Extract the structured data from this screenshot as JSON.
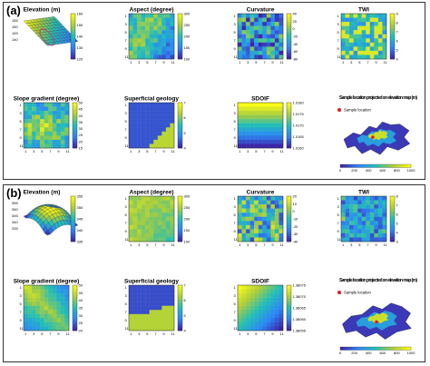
{
  "panels": [
    {
      "label": "(a)",
      "subplots": [
        {
          "title": "Elevation (m)",
          "type": "surface",
          "cb": [
            "160",
            "150",
            "140",
            "130",
            "120"
          ],
          "ticks": [
            "155",
            "150",
            "145",
            "140"
          ]
        },
        {
          "title": "Aspect (degree)",
          "type": "heatmap",
          "cb": [
            "300",
            "250",
            "200",
            "150",
            "100"
          ],
          "ticks": [
            "1",
            "3",
            "5",
            "7",
            "9",
            "11"
          ]
        },
        {
          "title": "Curvature",
          "type": "heatmap",
          "cb": [
            "40",
            "20",
            "0",
            "-20",
            "-40",
            "-60",
            "-80"
          ],
          "ticks": [
            "1",
            "3",
            "5",
            "7",
            "9",
            "11"
          ]
        },
        {
          "title": "TWI",
          "type": "heatmap",
          "cb": [
            "9",
            "8",
            "7",
            "6",
            "5",
            "4"
          ],
          "ticks": [
            "1",
            "3",
            "5",
            "7",
            "9",
            "11"
          ]
        },
        {
          "title": "Slope gradient (degree)",
          "type": "heatmap",
          "cb": [
            "50",
            "45",
            "40",
            "35",
            "30",
            "25",
            "20",
            "15"
          ],
          "ticks": [
            "1",
            "3",
            "5",
            "7",
            "9",
            "11"
          ]
        },
        {
          "title": "Superficial geology",
          "type": "geology",
          "cb": [
            "7",
            "6",
            "5",
            "4"
          ],
          "ticks": [
            "1",
            "3",
            "5",
            "7",
            "9",
            "11"
          ]
        },
        {
          "title": "SDOIF",
          "type": "bands",
          "cb": [
            "1.0180",
            "1.0175",
            "1.0170",
            "1.0165",
            "1.0160"
          ],
          "ticks": [
            "1",
            "3",
            "5",
            "7",
            "9",
            "11"
          ]
        },
        {
          "title": "Sample location projected on elevation map (m)",
          "type": "map",
          "legend": "Sample location",
          "cb": [
            "0",
            "200",
            "400",
            "600",
            "800",
            "1000"
          ]
        }
      ]
    },
    {
      "label": "(b)",
      "subplots": [
        {
          "title": "Elevation (m)",
          "type": "surface",
          "cb": [
            "355",
            "350",
            "345",
            "340",
            "335"
          ],
          "ticks": [
            "355",
            "350",
            "345",
            "340",
            "335"
          ]
        },
        {
          "title": "Aspect (degree)",
          "type": "heatmap",
          "cb": [
            "300",
            "250",
            "200",
            "150",
            "100"
          ],
          "ticks": [
            "1",
            "3",
            "5",
            "7",
            "9",
            "11"
          ]
        },
        {
          "title": "Curvature",
          "type": "heatmap",
          "cb": [
            "20",
            "10",
            "0",
            "-10",
            "-20",
            "-30",
            "-40"
          ],
          "ticks": [
            "1",
            "3",
            "5",
            "7",
            "9",
            "11"
          ]
        },
        {
          "title": "TWI",
          "type": "heatmap",
          "cb": [
            "8",
            "7",
            "6",
            "5",
            "4",
            "3"
          ],
          "ticks": [
            "1",
            "3",
            "5",
            "7",
            "9",
            "11"
          ]
        },
        {
          "title": "Slope gradient (degree)",
          "type": "heatmap",
          "cb": [
            "50",
            "45",
            "40",
            "35",
            "30",
            "25",
            "20"
          ],
          "ticks": [
            "1",
            "3",
            "5",
            "7",
            "9",
            "11"
          ]
        },
        {
          "title": "Superficial geology",
          "type": "geology",
          "cb": [
            "7",
            "6",
            "5",
            "4"
          ],
          "ticks": [
            "1",
            "3",
            "5",
            "7",
            "9",
            "11"
          ]
        },
        {
          "title": "SDOIF",
          "type": "gradient",
          "cb": [
            "1.38075",
            "1.38070",
            "1.38065",
            "1.38060",
            "1.38055"
          ],
          "ticks": [
            "1",
            "3",
            "5",
            "7",
            "9",
            "11"
          ]
        },
        {
          "title": "Sample location projected on elevation map (m)",
          "type": "map",
          "legend": "Sample location",
          "cb": [
            "0",
            "200",
            "400",
            "600",
            "800",
            "1000"
          ]
        }
      ]
    }
  ],
  "colors": {
    "low": "#3b18a8",
    "mid": "#2f9ac9",
    "high": "#f7e32a",
    "frame": "#333333",
    "star": "#e02020"
  },
  "chart_data": [
    {
      "type": "heatmap",
      "panel": "(a)",
      "title": "Aspect (degree)",
      "grid": [
        11,
        11
      ],
      "range": [
        100,
        300
      ]
    },
    {
      "type": "heatmap",
      "panel": "(a)",
      "title": "Curvature",
      "grid": [
        11,
        11
      ],
      "range": [
        -80,
        40
      ]
    },
    {
      "type": "heatmap",
      "panel": "(a)",
      "title": "TWI",
      "grid": [
        11,
        11
      ],
      "range": [
        4,
        9
      ]
    },
    {
      "type": "heatmap",
      "panel": "(a)",
      "title": "Slope gradient (degree)",
      "grid": [
        11,
        11
      ],
      "range": [
        15,
        50
      ]
    },
    {
      "type": "heatmap",
      "panel": "(a)",
      "title": "SDOIF",
      "grid": [
        11,
        11
      ],
      "range": [
        1.016,
        1.018
      ]
    },
    {
      "type": "heatmap",
      "panel": "(b)",
      "title": "Aspect (degree)",
      "grid": [
        11,
        11
      ],
      "range": [
        100,
        300
      ]
    },
    {
      "type": "heatmap",
      "panel": "(b)",
      "title": "Curvature",
      "grid": [
        11,
        11
      ],
      "range": [
        -40,
        20
      ]
    },
    {
      "type": "heatmap",
      "panel": "(b)",
      "title": "TWI",
      "grid": [
        11,
        11
      ],
      "range": [
        3,
        8
      ]
    },
    {
      "type": "heatmap",
      "panel": "(b)",
      "title": "Slope gradient (degree)",
      "grid": [
        11,
        11
      ],
      "range": [
        20,
        50
      ]
    },
    {
      "type": "heatmap",
      "panel": "(b)",
      "title": "SDOIF",
      "grid": [
        11,
        11
      ],
      "range": [
        1.38055,
        1.38075
      ]
    }
  ]
}
